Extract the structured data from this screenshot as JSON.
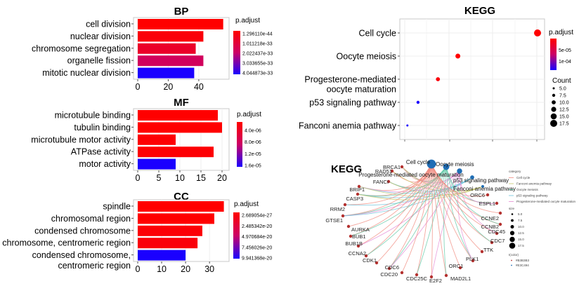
{
  "figure": {
    "panels": [
      "BP",
      "MF",
      "CC",
      "KEGG dot plot",
      "KEGG gene-concept network"
    ]
  },
  "chart_data": [
    {
      "type": "bar",
      "id": "bp",
      "title": "BP",
      "orientation": "horizontal",
      "categories": [
        "cell division",
        "nuclear division",
        "chromosome segregation",
        "organelle fission",
        "mitotic nuclear division"
      ],
      "values": [
        56,
        43,
        38,
        43,
        37
      ],
      "p_adjust_rank": [
        0.0,
        0.05,
        0.2,
        0.45,
        1.0
      ],
      "xlim": [
        0,
        58
      ],
      "xticks": [
        "0",
        "20",
        "40"
      ],
      "xtick_values": [
        0,
        20,
        40
      ],
      "legend": {
        "title": "p.adjust",
        "labels": [
          "1.296110e-44",
          "1.011218e-33",
          "2.022437e-33",
          "3.033655e-33",
          "4.044873e-33"
        ],
        "low_color": "#FF0000",
        "high_color": "#0000FF"
      }
    },
    {
      "type": "bar",
      "id": "mf",
      "title": "MF",
      "orientation": "horizontal",
      "categories": [
        "microtubule binding",
        "tubulin binding",
        "microtubule motor activity",
        "ATPase activity",
        "motor activity"
      ],
      "values": [
        19,
        20,
        9,
        18,
        9
      ],
      "p_adjust_rank": [
        0.0,
        0.0,
        0.02,
        0.02,
        1.0
      ],
      "xlim": [
        0,
        21
      ],
      "xticks": [
        "0",
        "5",
        "10",
        "15",
        "20"
      ],
      "xtick_values": [
        0,
        5,
        10,
        15,
        20
      ],
      "legend": {
        "title": "p.adjust",
        "labels": [
          "4.0e-06",
          "8.0e-06",
          "1.2e-05",
          "1.6e-05"
        ],
        "low_color": "#FF0000",
        "high_color": "#0000FF"
      }
    },
    {
      "type": "bar",
      "id": "cc",
      "title": "CC",
      "orientation": "horizontal",
      "categories": [
        "spindle",
        "chromosomal region",
        "condensed chromosome",
        "chromosome, centromeric region",
        "condensed chromosome, centromeric region"
      ],
      "category_lines": [
        [
          "spindle"
        ],
        [
          "chromosomal region"
        ],
        [
          "condensed chromosome"
        ],
        [
          "chromosome, centromeric region"
        ],
        [
          "condensed chromosome,",
          "centromeric region"
        ]
      ],
      "values": [
        36,
        32,
        27,
        25,
        20
      ],
      "p_adjust_rank": [
        0.0,
        0.0,
        0.03,
        0.05,
        1.0
      ],
      "xlim": [
        0,
        37
      ],
      "xticks": [
        "0",
        "10",
        "20",
        "30"
      ],
      "xtick_values": [
        0,
        10,
        20,
        30
      ],
      "legend": {
        "title": "p.adjust",
        "labels": [
          "2.689054e-27",
          "2.485342e-20",
          "4.970684e-20",
          "7.456026e-20",
          "9.941368e-20"
        ],
        "low_color": "#FF0000",
        "high_color": "#0000FF"
      }
    },
    {
      "type": "scatter",
      "id": "kegg-dot",
      "title": "KEGG",
      "categories": [
        "Cell cycle",
        "Oocyte meiosis",
        "Progesterone-mediated oocyte maturation",
        "p53 signaling pathway",
        "Fanconi anemia pathway"
      ],
      "category_lines": [
        [
          "Cell cycle"
        ],
        [
          "Oocyte meiosis"
        ],
        [
          "Progesterone-mediated",
          "oocyte  maturation"
        ],
        [
          "p53 signaling pathway"
        ],
        [
          "Fanconi anemia pathway"
        ]
      ],
      "x_relative": [
        1.0,
        0.4,
        0.25,
        0.1,
        0.02
      ],
      "count": [
        17.5,
        12,
        10,
        7.5,
        5
      ],
      "p_adjust_rank": [
        0.0,
        0.0,
        0.05,
        1.0,
        1.0
      ],
      "xlim_relative": [
        0,
        1
      ],
      "xticks": [],
      "color_legend": {
        "title": "p.adjust",
        "labels": [
          "5e-05",
          "1e-04"
        ]
      },
      "size_legend": {
        "title": "Count",
        "labels": [
          "5.0",
          "7.5",
          "10.0",
          "12.5",
          "15.0",
          "17.5"
        ],
        "values": [
          5,
          7.5,
          10,
          12.5,
          15,
          17.5
        ]
      }
    }
  ],
  "network": {
    "title": "KEGG",
    "hubs": [
      {
        "label": "Cell cycle",
        "size": 17.5
      },
      {
        "label": "Oocyte meiosis",
        "size": 12
      },
      {
        "label": "Progesterone-mediated oocyte maturation",
        "size": 10
      },
      {
        "label": "p53 signaling pathway",
        "size": 7.5
      },
      {
        "label": "Fanconi anemia pathway",
        "size": 5
      }
    ],
    "genes": [
      "BRCA1",
      "RAD51",
      "FANCI",
      "BRIP1",
      "CASP3",
      "RRM2",
      "GTSE1",
      "AURKA",
      "BUB1",
      "BUB1B",
      "CCNA2",
      "CDK1",
      "CDC6",
      "CDC20",
      "CDC25C",
      "E2F2",
      "MAD2L1",
      "ORC1",
      "PLK1",
      "TTK",
      "CDC7",
      "CDC45",
      "CCNB2",
      "CCNE2",
      "ESPL1",
      "ORC6"
    ],
    "gene_node_color": "#B3312F",
    "hub_node_color": "#1F6DB5",
    "legend": {
      "category_title": "category",
      "categories": [
        {
          "label": "Cell cycle",
          "color": "#F08A7E"
        },
        {
          "label": "Fanconi anemia pathway",
          "color": "#C8C86A"
        },
        {
          "label": "Oocyte meiosis",
          "color": "#5FC8A6"
        },
        {
          "label": "p53 signaling pathway",
          "color": "#6EC3DC"
        },
        {
          "label": "Progesterone-mediated oocyte maturation",
          "color": "#E58AD4"
        }
      ],
      "size_title": "size",
      "size_labels": [
        "5.0",
        "7.5",
        "10.0",
        "12.5",
        "15.0",
        "17.5"
      ],
      "color_title": "I(color)",
      "color_labels": [
        "#B3B3B3",
        "#E3C494"
      ]
    }
  }
}
